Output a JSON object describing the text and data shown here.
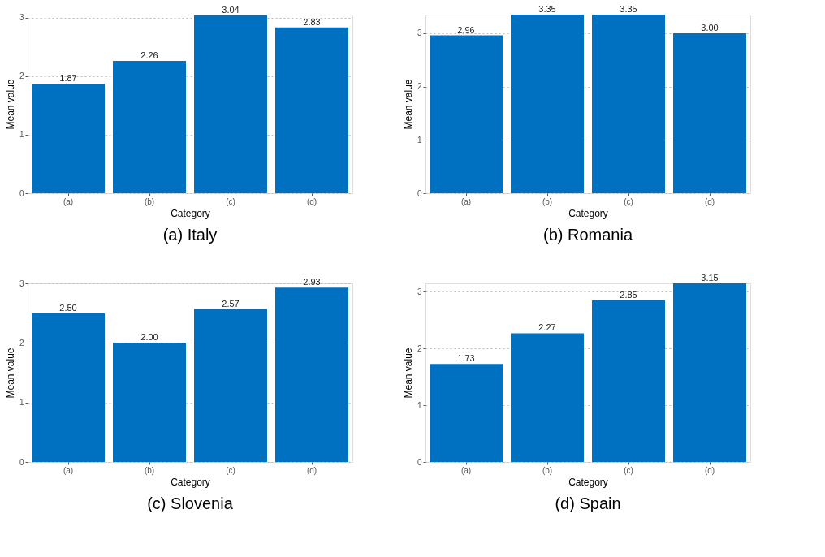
{
  "chart_data": [
    {
      "type": "bar",
      "title": "(a) Italy",
      "xlabel": "Category",
      "ylabel": "Mean value",
      "categories": [
        "(a)",
        "(b)",
        "(c)",
        "(d)"
      ],
      "values": [
        1.87,
        2.26,
        3.04,
        2.83
      ],
      "value_labels": [
        "1.87",
        "2.26",
        "3.04",
        "2.83"
      ],
      "color": "#0070c0",
      "ylim": [
        0,
        3.05
      ],
      "yticks": [
        0,
        1,
        2,
        3
      ],
      "grid": "y"
    },
    {
      "type": "bar",
      "title": "(b) Romania",
      "xlabel": "Category",
      "ylabel": "Mean value",
      "categories": [
        "(a)",
        "(b)",
        "(c)",
        "(d)"
      ],
      "values": [
        2.96,
        3.35,
        3.35,
        3.0
      ],
      "value_labels": [
        "2.96",
        "3.35",
        "3.35",
        "3.00"
      ],
      "color": "#0070c0",
      "ylim": [
        0,
        3.35
      ],
      "yticks": [
        0,
        1,
        2,
        3
      ],
      "grid": "y"
    },
    {
      "type": "bar",
      "title": "(c) Slovenia",
      "xlabel": "Category",
      "ylabel": "Mean value",
      "categories": [
        "(a)",
        "(b)",
        "(c)",
        "(d)"
      ],
      "values": [
        2.5,
        2.0,
        2.57,
        2.93
      ],
      "value_labels": [
        "2.50",
        "2.00",
        "2.57",
        "2.93"
      ],
      "color": "#0070c0",
      "ylim": [
        0,
        3.0
      ],
      "yticks": [
        0,
        1,
        2,
        3
      ],
      "grid": "y"
    },
    {
      "type": "bar",
      "title": "(d) Spain",
      "xlabel": "Category",
      "ylabel": "Mean value",
      "categories": [
        "(a)",
        "(b)",
        "(c)",
        "(d)"
      ],
      "values": [
        1.73,
        2.27,
        2.85,
        3.15
      ],
      "value_labels": [
        "1.73",
        "2.27",
        "2.85",
        "3.15"
      ],
      "color": "#0070c0",
      "ylim": [
        0,
        3.15
      ],
      "yticks": [
        0,
        1,
        2,
        3
      ],
      "grid": "y"
    }
  ]
}
